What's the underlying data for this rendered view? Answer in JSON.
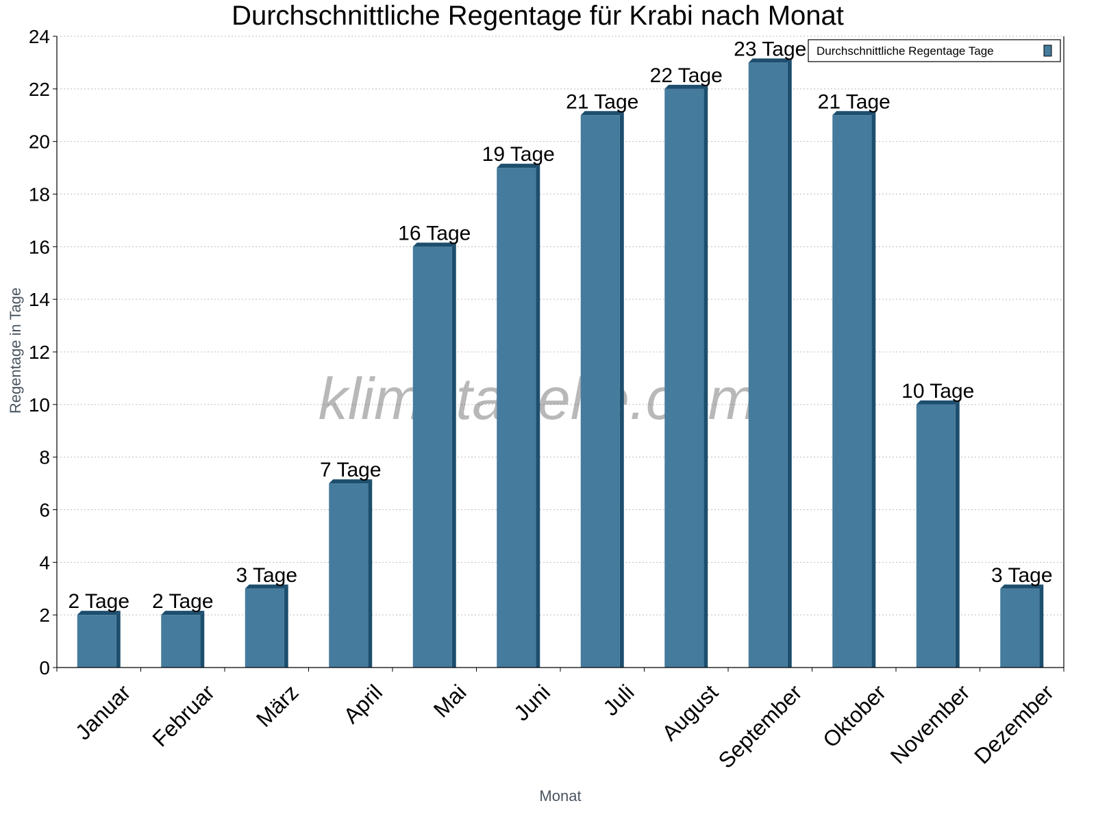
{
  "chart_data": {
    "type": "bar",
    "title": "Durchschnittliche Regentage für Krabi nach Monat",
    "xlabel": "Monat",
    "ylabel": "Regentage in Tage",
    "categories": [
      "Januar",
      "Februar",
      "März",
      "April",
      "Mai",
      "Juni",
      "Juli",
      "August",
      "September",
      "Oktober",
      "November",
      "Dezember"
    ],
    "series": [
      {
        "name": "Durchschnittliche Regentage Tage",
        "values": [
          2,
          2,
          3,
          7,
          16,
          19,
          21,
          22,
          23,
          21,
          10,
          3
        ],
        "color": "#457b9d",
        "edge_color": "#1d4e6e"
      }
    ],
    "data_labels": [
      "2 Tage",
      "2 Tage",
      "3 Tage",
      "7 Tage",
      "16 Tage",
      "19 Tage",
      "21 Tage",
      "22 Tage",
      "23 Tage",
      "21 Tage",
      "10 Tage",
      "3 Tage"
    ],
    "ylim": [
      0,
      24
    ],
    "yticks": [
      0,
      2,
      4,
      6,
      8,
      10,
      12,
      14,
      16,
      18,
      20,
      22,
      24
    ],
    "grid": "horizontal dotted",
    "legend": "top-right",
    "watermark": "klimatabelle.com"
  }
}
